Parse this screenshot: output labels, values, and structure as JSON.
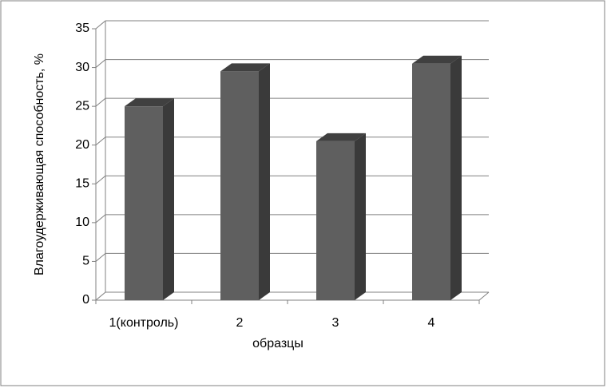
{
  "chart_data": {
    "type": "bar3d",
    "x_label": "образцы",
    "y_label": "Влагоудерживающая способность, %",
    "categories": [
      "1(контроль)",
      "2",
      "3",
      "4"
    ],
    "values": [
      25,
      29.5,
      20.5,
      30.5
    ],
    "color": "#5f5f5f",
    "ylim": [
      0,
      35
    ],
    "yticks": [
      0,
      5,
      10,
      15,
      20,
      25,
      30,
      35
    ],
    "grid": true
  }
}
